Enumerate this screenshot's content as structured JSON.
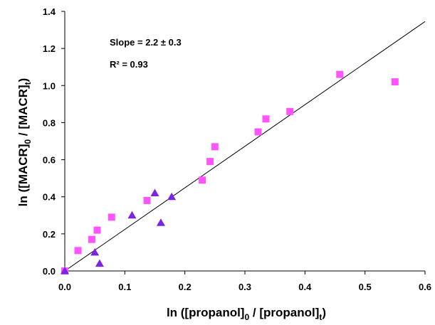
{
  "chart_data": {
    "type": "scatter",
    "xlabel": {
      "main": "ln ([propanol]",
      "sub1": "0",
      "mid": " / [propanol]",
      "sub2": "t",
      "end": ")"
    },
    "ylabel": {
      "main": "ln ([MACR]",
      "sub1": "0",
      "mid": " / [MACR]",
      "sub2": "t",
      "end": ")"
    },
    "xlim": [
      0.0,
      0.6
    ],
    "ylim": [
      0.0,
      1.4
    ],
    "xticks": [
      {
        "value": 0.0,
        "label": "0.0"
      },
      {
        "value": 0.1,
        "label": "0.1"
      },
      {
        "value": 0.2,
        "label": "0.2"
      },
      {
        "value": 0.3,
        "label": "0.3"
      },
      {
        "value": 0.4,
        "label": "0.4"
      },
      {
        "value": 0.5,
        "label": "0.5"
      },
      {
        "value": 0.6,
        "label": "0.6"
      }
    ],
    "yticks": [
      {
        "value": 0.0,
        "label": "0.0"
      },
      {
        "value": 0.2,
        "label": "0.2"
      },
      {
        "value": 0.4,
        "label": "0.4"
      },
      {
        "value": 0.6,
        "label": "0.6"
      },
      {
        "value": 0.8,
        "label": "0.8"
      },
      {
        "value": 1.0,
        "label": "1.0"
      },
      {
        "value": 1.2,
        "label": "1.2"
      },
      {
        "value": 1.4,
        "label": "1.4"
      }
    ],
    "grid": false,
    "annotations": {
      "slope": "Slope = 2.2 ± 0.3",
      "r2": "R² = 0.93"
    },
    "fit_line": {
      "x": [
        0.0,
        0.6
      ],
      "y": [
        0.0,
        1.345
      ],
      "color": "#000000"
    },
    "series": [
      {
        "marker": "square",
        "color": "#ff55ff",
        "points": [
          [
            0.0,
            0.0
          ],
          [
            0.022,
            0.11
          ],
          [
            0.045,
            0.17
          ],
          [
            0.054,
            0.22
          ],
          [
            0.078,
            0.29
          ],
          [
            0.137,
            0.38
          ],
          [
            0.229,
            0.49
          ],
          [
            0.242,
            0.59
          ],
          [
            0.25,
            0.67
          ],
          [
            0.322,
            0.75
          ],
          [
            0.335,
            0.82
          ],
          [
            0.375,
            0.86
          ],
          [
            0.458,
            1.06
          ],
          [
            0.55,
            1.02
          ]
        ]
      },
      {
        "marker": "triangle",
        "color": "#7a22e6",
        "points": [
          [
            0.0,
            0.0
          ],
          [
            0.05,
            0.1
          ],
          [
            0.058,
            0.04
          ],
          [
            0.112,
            0.3
          ],
          [
            0.15,
            0.42
          ],
          [
            0.16,
            0.26
          ],
          [
            0.178,
            0.4
          ]
        ]
      }
    ]
  }
}
